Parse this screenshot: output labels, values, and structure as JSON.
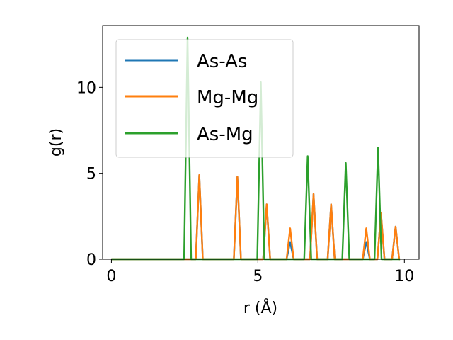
{
  "chart_data": {
    "type": "line",
    "title": "",
    "xlabel": "r (Å)",
    "ylabel": "g(r)",
    "xlim": [
      -0.3,
      10.5
    ],
    "ylim": [
      0,
      13.6
    ],
    "xticks": [
      0,
      5,
      10
    ],
    "xtick_labels": [
      "0",
      "5",
      "10"
    ],
    "yticks": [
      0,
      5,
      10
    ],
    "ytick_labels": [
      "0",
      "5",
      "10"
    ],
    "grid": false,
    "legend_position": "top-left",
    "x_range": [
      0,
      9.85
    ],
    "peak_halfwidth": 0.12,
    "series": [
      {
        "name": "As-As",
        "color": "#1f77b4",
        "peaks": [
          [
            3.0,
            4.9
          ],
          [
            4.3,
            4.8
          ],
          [
            5.3,
            3.2
          ],
          [
            6.1,
            1.0
          ],
          [
            6.9,
            3.8
          ],
          [
            7.5,
            3.2
          ],
          [
            8.7,
            1.0
          ],
          [
            9.2,
            2.7
          ],
          [
            9.7,
            1.9
          ]
        ]
      },
      {
        "name": "Mg-Mg",
        "color": "#ff7f0e",
        "peaks": [
          [
            3.0,
            4.9
          ],
          [
            4.3,
            4.8
          ],
          [
            5.3,
            3.2
          ],
          [
            6.1,
            1.8
          ],
          [
            6.9,
            3.8
          ],
          [
            7.5,
            3.2
          ],
          [
            8.7,
            1.8
          ],
          [
            9.2,
            2.7
          ],
          [
            9.7,
            1.9
          ]
        ]
      },
      {
        "name": "As-Mg",
        "color": "#2ca02c",
        "peaks": [
          [
            2.6,
            12.9
          ],
          [
            5.1,
            10.3
          ],
          [
            6.7,
            6.0
          ],
          [
            8.0,
            5.6
          ],
          [
            9.1,
            6.5
          ]
        ]
      }
    ]
  }
}
